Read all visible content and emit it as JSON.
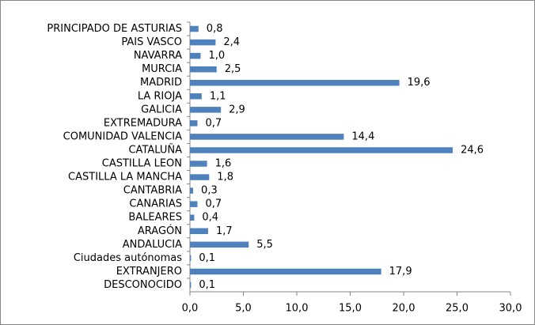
{
  "chart_data": {
    "type": "bar",
    "orientation": "horizontal",
    "categories": [
      "PRINCIPADO DE ASTURIAS",
      "PAIS VASCO",
      "NAVARRA",
      "MURCIA",
      "MADRID",
      "LA RIOJA",
      "GALICIA",
      "EXTREMADURA",
      "COMUNIDAD VALENCIA",
      "CATALUÑA",
      "CASTILLA LEON",
      "CASTILLA LA MANCHA",
      "CANTABRIA",
      "CANARIAS",
      "BALEARES",
      "ARAGÓN",
      "ANDALUCIA",
      "Ciudades autónomas",
      "EXTRANJERO",
      "DESCONOCIDO"
    ],
    "values": [
      0.8,
      2.4,
      1.0,
      2.5,
      19.6,
      1.1,
      2.9,
      0.7,
      14.4,
      24.6,
      1.6,
      1.8,
      0.3,
      0.7,
      0.4,
      1.7,
      5.5,
      0.1,
      17.9,
      0.1
    ],
    "value_labels": [
      "0,8",
      "2,4",
      "1,0",
      "2,5",
      "19,6",
      "1,1",
      "2,9",
      "0,7",
      "14,4",
      "24,6",
      "1,6",
      "1,8",
      "0,3",
      "0,7",
      "0,4",
      "1,7",
      "5,5",
      "0,1",
      "17,9",
      "0,1"
    ],
    "color": "#4f81bd",
    "xlim": [
      0,
      30
    ],
    "xticks": [
      {
        "value": 0,
        "label": "0,0"
      },
      {
        "value": 5,
        "label": "5,0"
      },
      {
        "value": 10,
        "label": "10,0"
      },
      {
        "value": 15,
        "label": "15,0"
      },
      {
        "value": 20,
        "label": "20,0"
      },
      {
        "value": 25,
        "label": "25,0"
      },
      {
        "value": 30,
        "label": "30,0"
      }
    ],
    "grid": false
  }
}
